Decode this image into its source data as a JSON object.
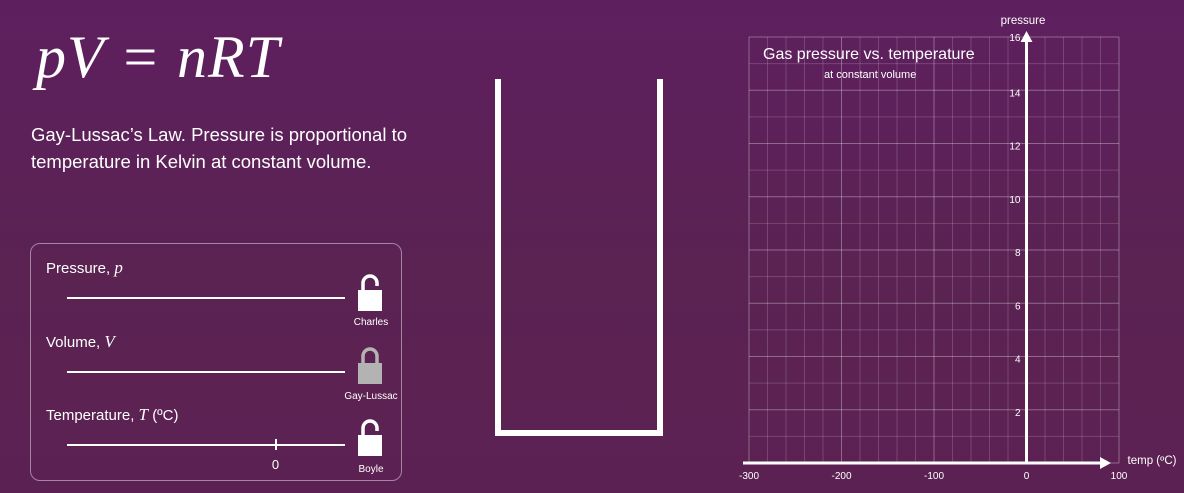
{
  "equation": "pV = nRT",
  "description": "Gay-Lussac’s Law.  Pressure is proportional to temperature in Kelvin at constant volume.",
  "controls": {
    "pressure": {
      "label": "Pressure, ",
      "symbol": "p",
      "lock_label": "Charles",
      "locked": false
    },
    "volume": {
      "label": "Volume, ",
      "symbol": "V",
      "lock_label": "Gay-Lussac",
      "locked": true
    },
    "temperature": {
      "label": "Temperature, ",
      "symbol": "T",
      "unit": "(ºC)",
      "value": 0,
      "value_label": "0",
      "min": -300,
      "max": 100,
      "lock_label": "Boyle",
      "locked": false
    }
  },
  "colors": {
    "lock_open": "#ffffff",
    "lock_locked": "#b3b3b3"
  },
  "chart_data": {
    "type": "line",
    "title": "Gas pressure vs. temperature",
    "subtitle": "at constant volume",
    "xlabel": "temp (ºC)",
    "ylabel": "pressure",
    "xlim": [
      -300,
      100
    ],
    "ylim": [
      0,
      16
    ],
    "x_ticks": [
      -300,
      -200,
      -100,
      0,
      100
    ],
    "y_ticks": [
      2,
      4,
      6,
      8,
      10,
      12,
      14,
      16
    ],
    "grid": true,
    "series": []
  }
}
